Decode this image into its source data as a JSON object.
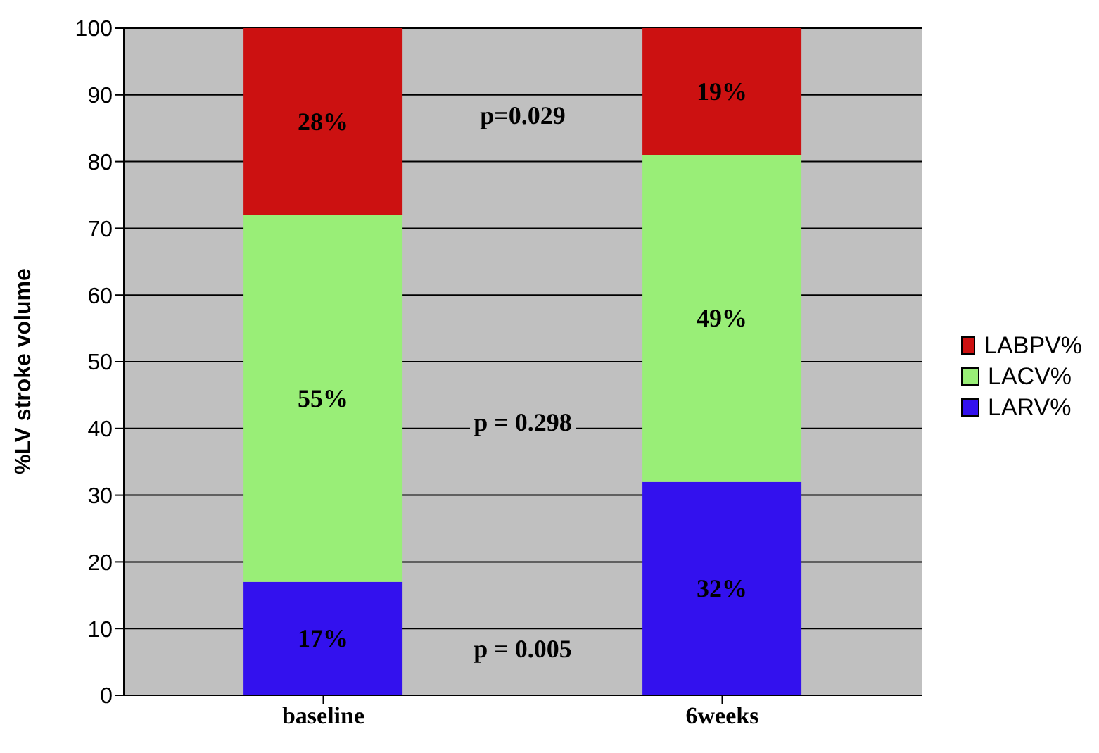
{
  "chart_data": {
    "type": "bar",
    "stacked": true,
    "ylabel": "%LV stroke volume",
    "categories": [
      "baseline",
      "6weeks"
    ],
    "series": [
      {
        "name": "LARV%",
        "color": "#3311ee",
        "values": [
          17,
          32
        ],
        "value_labels": [
          "17%",
          "32%"
        ]
      },
      {
        "name": "LACV%",
        "color": "#99ee77",
        "values": [
          55,
          49
        ],
        "value_labels": [
          "55%",
          "49%"
        ]
      },
      {
        "name": "LABPV%",
        "color": "#cc1111",
        "values": [
          28,
          19
        ],
        "value_labels": [
          "28%",
          "19%"
        ]
      }
    ],
    "ylim": [
      0,
      100
    ],
    "yticks": [
      0,
      10,
      20,
      30,
      40,
      50,
      60,
      70,
      80,
      90,
      100
    ],
    "grid": "y",
    "legend": "right",
    "annotations": [
      "p=0.029",
      "p = 0.298",
      "p = 0.005"
    ]
  }
}
